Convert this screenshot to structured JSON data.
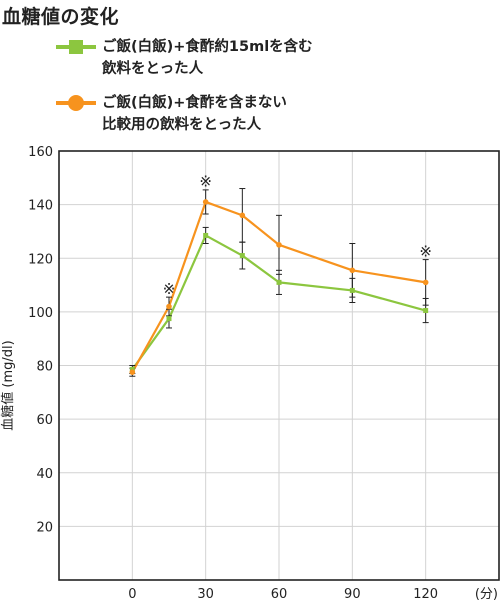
{
  "page": {
    "title": "血糖値の変化"
  },
  "chart_data": {
    "type": "line",
    "title": "血糖値の変化",
    "xlabel": "",
    "x_unit_label": "(分)",
    "ylabel": "血糖値 (mg/dl)",
    "x_ticks": [
      "0",
      "30",
      "60",
      "90",
      "120"
    ],
    "y_ticks": [
      "20",
      "40",
      "60",
      "80",
      "100",
      "120",
      "140",
      "160"
    ],
    "xlim": [
      -30,
      150
    ],
    "ylim": [
      0,
      160
    ],
    "grid": true,
    "legend_position": "top-left",
    "series": [
      {
        "name": "ご飯(白飯)+食酢約15mlを含む\n飲料をとった人",
        "color": "#8cc63f",
        "marker": "square",
        "points": [
          {
            "x": 0,
            "y": 78.5,
            "err": 1.5
          },
          {
            "x": 15,
            "y": 97.5,
            "err": 3.5
          },
          {
            "x": 30,
            "y": 128.5,
            "err": 3
          },
          {
            "x": 45,
            "y": 121,
            "err": 5
          },
          {
            "x": 60,
            "y": 111,
            "err": 4.5
          },
          {
            "x": 90,
            "y": 108,
            "err": 4.5
          },
          {
            "x": 120,
            "y": 100.5,
            "err": 4.5
          }
        ]
      },
      {
        "name": "ご飯(白飯)+食酢を含まない\n比較用の飲料をとった人",
        "color": "#f7931e",
        "marker": "circle",
        "points": [
          {
            "x": 0,
            "y": 77.5,
            "err": 1.5
          },
          {
            "x": 15,
            "y": 102,
            "err": 3.5
          },
          {
            "x": 30,
            "y": 141,
            "err": 4.5
          },
          {
            "x": 45,
            "y": 136,
            "err": 10
          },
          {
            "x": 60,
            "y": 125,
            "err": 11
          },
          {
            "x": 90,
            "y": 115.5,
            "err": 10
          },
          {
            "x": 120,
            "y": 111,
            "err": 8.5
          }
        ]
      }
    ],
    "annotations": [
      {
        "text": "※",
        "x": 15,
        "y": 106
      },
      {
        "text": "※",
        "x": 30,
        "y": 146
      },
      {
        "text": "※",
        "x": 120,
        "y": 120
      }
    ]
  }
}
